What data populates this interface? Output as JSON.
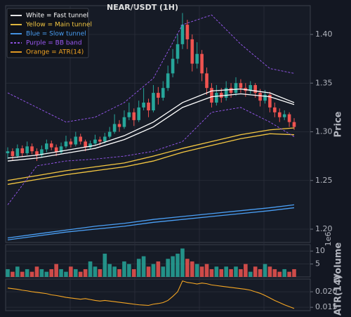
{
  "chart_data": {
    "type": "candlestick",
    "title": "NEAR/USDT (1H)",
    "up_color": "#26a69a",
    "down_color": "#ef5350",
    "legend": [
      {
        "label": "White = Fast tunnel",
        "color": "#ffffff",
        "dashed": false
      },
      {
        "label": "Yellow = Main tunnel",
        "color": "#f5c842",
        "dashed": false
      },
      {
        "label": "Blue = Slow tunnel",
        "color": "#4a9ff5",
        "dashed": false
      },
      {
        "label": "Purple = BB band",
        "color": "#9b59f5",
        "dashed": true
      },
      {
        "label": "Orange = ATR(14)",
        "color": "#f5a623",
        "dashed": false
      }
    ],
    "y_label": "Price",
    "ylim": [
      1.1863,
      1.4296
    ],
    "yticks": [
      {
        "value": 1.2,
        "label": "1.20"
      },
      1.25,
      {
        "value": 1.3,
        "label": "1.30"
      },
      1.35,
      {
        "value": 1.4,
        "label": "1.40"
      }
    ],
    "grid": true,
    "candles": [
      [
        1.278,
        1.284,
        1.272,
        1.28
      ],
      [
        1.28,
        1.283,
        1.271,
        1.275
      ],
      [
        1.275,
        1.287,
        1.273,
        1.283
      ],
      [
        1.283,
        1.286,
        1.274,
        1.278
      ],
      [
        1.278,
        1.29,
        1.276,
        1.285
      ],
      [
        1.285,
        1.288,
        1.277,
        1.28
      ],
      [
        1.28,
        1.283,
        1.27,
        1.276
      ],
      [
        1.276,
        1.286,
        1.274,
        1.282
      ],
      [
        1.282,
        1.292,
        1.279,
        1.288
      ],
      [
        1.288,
        1.291,
        1.281,
        1.284
      ],
      [
        1.284,
        1.287,
        1.275,
        1.279
      ],
      [
        1.279,
        1.289,
        1.277,
        1.285
      ],
      [
        1.285,
        1.296,
        1.283,
        1.29
      ],
      [
        1.29,
        1.293,
        1.284,
        1.287
      ],
      [
        1.287,
        1.3,
        1.285,
        1.295
      ],
      [
        1.295,
        1.298,
        1.287,
        1.29
      ],
      [
        1.29,
        1.292,
        1.28,
        1.284
      ],
      [
        1.284,
        1.291,
        1.282,
        1.288
      ],
      [
        1.288,
        1.297,
        1.286,
        1.292
      ],
      [
        1.292,
        1.295,
        1.286,
        1.29
      ],
      [
        1.29,
        1.299,
        1.288,
        1.295
      ],
      [
        1.295,
        1.305,
        1.293,
        1.3
      ],
      [
        1.3,
        1.318,
        1.298,
        1.308
      ],
      [
        1.308,
        1.312,
        1.3,
        1.305
      ],
      [
        1.305,
        1.322,
        1.303,
        1.315
      ],
      [
        1.315,
        1.33,
        1.312,
        1.32
      ],
      [
        1.32,
        1.324,
        1.306,
        1.312
      ],
      [
        1.312,
        1.332,
        1.31,
        1.325
      ],
      [
        1.325,
        1.345,
        1.322,
        1.33
      ],
      [
        1.33,
        1.334,
        1.315,
        1.322
      ],
      [
        1.322,
        1.348,
        1.32,
        1.34
      ],
      [
        1.34,
        1.346,
        1.328,
        1.335
      ],
      [
        1.335,
        1.352,
        1.332,
        1.345
      ],
      [
        1.345,
        1.368,
        1.342,
        1.36
      ],
      [
        1.36,
        1.385,
        1.356,
        1.375
      ],
      [
        1.375,
        1.4,
        1.37,
        1.39
      ],
      [
        1.39,
        1.422,
        1.385,
        1.41
      ],
      [
        1.41,
        1.415,
        1.385,
        1.395
      ],
      [
        1.395,
        1.4,
        1.362,
        1.37
      ],
      [
        1.37,
        1.392,
        1.365,
        1.38
      ],
      [
        1.38,
        1.384,
        1.352,
        1.36
      ],
      [
        1.36,
        1.366,
        1.338,
        1.345
      ],
      [
        1.345,
        1.35,
        1.325,
        1.33
      ],
      [
        1.33,
        1.348,
        1.327,
        1.34
      ],
      [
        1.34,
        1.345,
        1.33,
        1.335
      ],
      [
        1.335,
        1.352,
        1.332,
        1.345
      ],
      [
        1.345,
        1.35,
        1.335,
        1.34
      ],
      [
        1.34,
        1.356,
        1.337,
        1.35
      ],
      [
        1.35,
        1.354,
        1.34,
        1.345
      ],
      [
        1.345,
        1.35,
        1.336,
        1.342
      ],
      [
        1.342,
        1.352,
        1.339,
        1.348
      ],
      [
        1.348,
        1.35,
        1.335,
        1.34
      ],
      [
        1.34,
        1.344,
        1.326,
        1.332
      ],
      [
        1.332,
        1.343,
        1.329,
        1.338
      ],
      [
        1.338,
        1.341,
        1.32,
        1.325
      ],
      [
        1.325,
        1.33,
        1.315,
        1.32
      ],
      [
        1.32,
        1.324,
        1.31,
        1.315
      ],
      [
        1.315,
        1.322,
        1.312,
        1.318
      ],
      [
        1.318,
        1.32,
        1.305,
        1.31
      ],
      [
        1.31,
        1.314,
        1.302,
        1.305
      ]
    ],
    "overlay_index": [
      0,
      6,
      12,
      18,
      24,
      30,
      36,
      42,
      48,
      54,
      59
    ],
    "overlays": [
      {
        "legend": 0,
        "values": [
          1.273,
          1.276,
          1.281,
          1.286,
          1.296,
          1.31,
          1.33,
          1.342,
          1.344,
          1.34,
          1.33
        ]
      },
      {
        "legend": 0,
        "values": [
          1.27,
          1.273,
          1.278,
          1.283,
          1.292,
          1.305,
          1.325,
          1.336,
          1.339,
          1.336,
          1.328
        ]
      },
      {
        "legend": 1,
        "values": [
          1.25,
          1.255,
          1.26,
          1.264,
          1.268,
          1.275,
          1.283,
          1.29,
          1.297,
          1.302,
          1.304
        ]
      },
      {
        "legend": 1,
        "values": [
          1.246,
          1.251,
          1.256,
          1.26,
          1.264,
          1.27,
          1.279,
          1.286,
          1.293,
          1.298,
          1.297
        ]
      },
      {
        "legend": 2,
        "values": [
          1.191,
          1.195,
          1.199,
          1.203,
          1.206,
          1.21,
          1.213,
          1.216,
          1.219,
          1.222,
          1.225
        ]
      },
      {
        "legend": 2,
        "values": [
          1.189,
          1.193,
          1.197,
          1.2,
          1.203,
          1.207,
          1.21,
          1.213,
          1.216,
          1.219,
          1.222
        ]
      },
      {
        "legend": 3,
        "values": [
          1.34,
          1.325,
          1.31,
          1.315,
          1.33,
          1.355,
          1.41,
          1.42,
          1.39,
          1.365,
          1.36
        ]
      },
      {
        "legend": 3,
        "values": [
          1.225,
          1.265,
          1.27,
          1.272,
          1.275,
          1.28,
          1.29,
          1.32,
          1.325,
          1.31,
          1.295
        ]
      }
    ],
    "volume": {
      "label": "Volume",
      "offset_label": "1e6",
      "ylim": [
        0,
        12.5
      ],
      "yticks": [
        5,
        10
      ],
      "values": [
        3,
        2,
        4,
        2,
        3,
        2,
        4,
        3,
        2,
        3,
        5,
        3,
        2,
        4,
        3,
        2,
        3,
        6,
        4,
        3,
        9,
        5,
        4,
        3,
        6,
        5,
        3,
        7,
        8,
        4,
        5,
        6,
        4,
        7,
        8,
        9,
        11,
        7,
        6,
        5,
        4,
        5,
        3,
        4,
        3,
        4,
        3,
        4,
        3,
        5,
        2,
        4,
        3,
        5,
        4,
        3,
        2,
        3,
        2,
        3
      ]
    },
    "atr": {
      "label": "ATR(14)",
      "legend": 4,
      "ylim": [
        0.0139,
        0.0241
      ],
      "yticks": [
        {
          "value": 0.015,
          "label": "0.015"
        },
        {
          "value": 0.02,
          "label": "0.020"
        }
      ],
      "values": [
        0.0212,
        0.021,
        0.0208,
        0.0205,
        0.0203,
        0.02,
        0.0198,
        0.0196,
        0.0194,
        0.019,
        0.0188,
        0.0185,
        0.0182,
        0.018,
        0.0178,
        0.0176,
        0.0178,
        0.0175,
        0.0172,
        0.017,
        0.0172,
        0.017,
        0.0168,
        0.0166,
        0.0164,
        0.0162,
        0.016,
        0.0158,
        0.0157,
        0.0156,
        0.016,
        0.0162,
        0.0165,
        0.0172,
        0.0185,
        0.02,
        0.0235,
        0.023,
        0.0228,
        0.0225,
        0.0228,
        0.0226,
        0.0222,
        0.022,
        0.0218,
        0.0216,
        0.0214,
        0.0212,
        0.021,
        0.0208,
        0.0205,
        0.02,
        0.0195,
        0.0188,
        0.018,
        0.0172,
        0.0165,
        0.0158,
        0.0152,
        0.0146
      ]
    }
  }
}
